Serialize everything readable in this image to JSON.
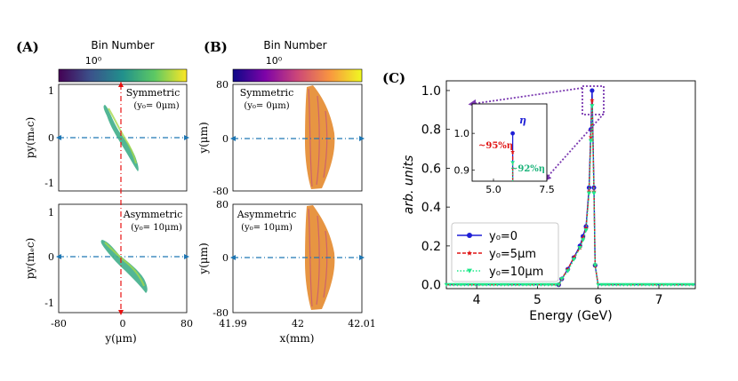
{
  "panel_a": {
    "label": "(A)",
    "colorbar_title": "Bin Number",
    "colorbar_tick": "10⁰",
    "top_annotation": "Symmetric",
    "top_annotation_sub": "(y₀= 0μm)",
    "bottom_annotation": "Asymmetric",
    "bottom_annotation_sub": "(y₀= 10μm)",
    "ylabel": "py(mₑc)",
    "xlabel": "y(μm)",
    "y_ticks": [
      "1",
      "0",
      "-1"
    ],
    "x_ticks": [
      "-80",
      "0",
      "80"
    ]
  },
  "panel_b": {
    "label": "(B)",
    "colorbar_title": "Bin Number",
    "colorbar_tick": "10⁰",
    "top_annotation": "Symmetric",
    "top_annotation_sub": "(y₀= 0μm)",
    "bottom_annotation": "Asymmetric",
    "bottom_annotation_sub": "(y₀= 10μm)",
    "ylabel": "y(μm)",
    "xlabel": "x(mm)",
    "y_ticks": [
      "80",
      "0",
      "-80"
    ],
    "x_ticks": [
      "41.99",
      "42",
      "42.01"
    ]
  },
  "chart_data": {
    "type": "line",
    "label": "(C)",
    "title": "",
    "xlabel": "Energy (GeV)",
    "ylabel": "arb. units",
    "xlim": [
      3.5,
      7.6
    ],
    "ylim": [
      -0.02,
      1.05
    ],
    "x_ticks": [
      4,
      5,
      6,
      7
    ],
    "y_ticks": [
      0.0,
      0.2,
      0.4,
      0.6,
      0.8,
      1.0
    ],
    "x_tick_labels": [
      "4",
      "5",
      "6",
      "7"
    ],
    "y_tick_labels": [
      "0.0",
      "0.2",
      "0.4",
      "0.6",
      "0.8",
      "1.0"
    ],
    "series": [
      {
        "name": "y₀=0",
        "legend_label": "y₀=0",
        "color": "#1f1fd6",
        "marker": "circle",
        "x": [
          3.5,
          5.35,
          5.4,
          5.5,
          5.6,
          5.7,
          5.75,
          5.8,
          5.85,
          5.88,
          5.9,
          5.93,
          5.95,
          6.0,
          7.6
        ],
        "y": [
          0.0,
          0.0,
          0.03,
          0.08,
          0.14,
          0.2,
          0.25,
          0.3,
          0.5,
          0.8,
          1.0,
          0.5,
          0.1,
          0.0,
          0.0
        ]
      },
      {
        "name": "y₀=5μm",
        "legend_label": "y₀=5μm",
        "color": "#e01515",
        "marker": "star",
        "x": [
          3.5,
          5.35,
          5.4,
          5.5,
          5.6,
          5.7,
          5.75,
          5.8,
          5.85,
          5.88,
          5.9,
          5.93,
          5.95,
          6.0,
          7.6
        ],
        "y": [
          0.0,
          0.0,
          0.03,
          0.08,
          0.14,
          0.19,
          0.24,
          0.29,
          0.48,
          0.76,
          0.95,
          0.48,
          0.1,
          0.0,
          0.0
        ]
      },
      {
        "name": "y₀=10μm",
        "legend_label": "y₀=10μm",
        "color": "#1ee88a",
        "marker": "triangle",
        "x": [
          3.5,
          5.35,
          5.4,
          5.5,
          5.6,
          5.7,
          5.75,
          5.8,
          5.85,
          5.88,
          5.9,
          5.93,
          5.95,
          6.0,
          7.6
        ],
        "y": [
          0.0,
          0.0,
          0.03,
          0.07,
          0.13,
          0.19,
          0.23,
          0.28,
          0.47,
          0.74,
          0.92,
          0.47,
          0.1,
          0.0,
          0.0
        ]
      }
    ],
    "inset": {
      "xlim": [
        4.0,
        7.5
      ],
      "ylim": [
        0.87,
        1.08
      ],
      "x_ticks": [
        5.0,
        7.5
      ],
      "y_ticks": [
        0.9,
        1.0
      ],
      "x_tick_labels": [
        "5.0",
        "7.5"
      ],
      "y_tick_labels": [
        "0.9",
        "1.0"
      ],
      "peaks": [
        1.0,
        0.95,
        0.92
      ],
      "peak_x": 5.9,
      "annotation_eta": "η",
      "annotation_95": "~95%η",
      "annotation_92": "~92%η"
    }
  },
  "colors": {
    "panel_a_scatter": "#3fae8a",
    "panel_b_scatter": "#e4892e",
    "dashdot_h": "#1f77b4",
    "dashdot_v": "#e81010",
    "zoom_box": "#7a38b0"
  }
}
